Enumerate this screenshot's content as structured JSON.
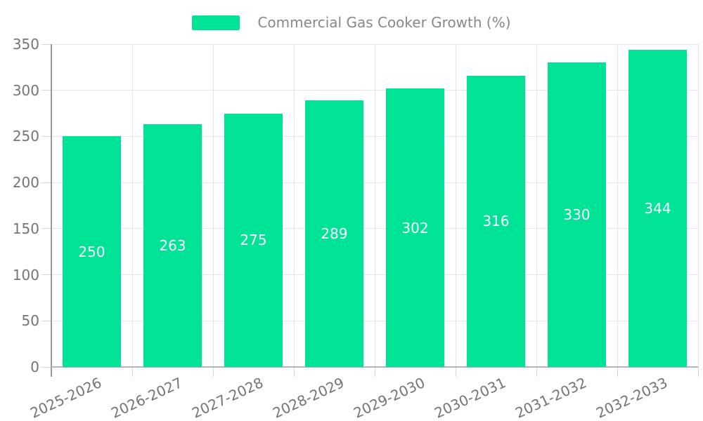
{
  "legend": {
    "label": "Commercial Gas Cooker Growth (%)"
  },
  "colors": {
    "bar": "#00E396",
    "grid": "#e7e7e7",
    "y_axis_line": "#9a9a9a",
    "x_axis_line": "#b5b5b5",
    "tick_mark": "#d6d6d6",
    "tick_label_text": "#757575",
    "legend_text": "#888888",
    "value_label_text": "#ffffff",
    "background": "#ffffff"
  },
  "chart_data": {
    "type": "bar",
    "title": "Commercial Gas Cooker Growth (%)",
    "categories": [
      "2025-2026",
      "2026-2027",
      "2027-2028",
      "2028-2029",
      "2029-2030",
      "2030-2031",
      "2031-2032",
      "2032-2033"
    ],
    "values": [
      250,
      263,
      275,
      289,
      302,
      316,
      330,
      344
    ],
    "xlabel": "",
    "ylabel": "",
    "ylim": [
      0,
      350
    ],
    "yticks": [
      0,
      50,
      100,
      150,
      200,
      250,
      300,
      350
    ],
    "grid": true,
    "legend_position": "top",
    "bar_color": "#00E396",
    "value_label_position": "inside-center",
    "value_label_color": "#ffffff"
  }
}
